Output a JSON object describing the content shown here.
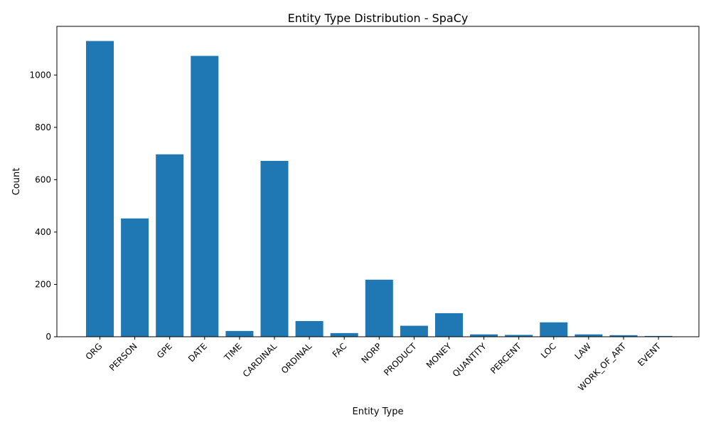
{
  "chart_data": {
    "type": "bar",
    "title": "Entity Type Distribution - SpaCy",
    "xlabel": "Entity Type",
    "ylabel": "Count",
    "categories": [
      "ORG",
      "PERSON",
      "GPE",
      "DATE",
      "TIME",
      "CARDINAL",
      "ORDINAL",
      "FAC",
      "NORP",
      "PRODUCT",
      "MONEY",
      "QUANTITY",
      "PERCENT",
      "LOC",
      "LAW",
      "WORK_OF_ART",
      "EVENT"
    ],
    "values": [
      1130,
      452,
      697,
      1073,
      22,
      672,
      60,
      14,
      218,
      42,
      90,
      9,
      7,
      55,
      9,
      6,
      3
    ],
    "ylim": [
      0,
      1186
    ],
    "yticks": [
      0,
      200,
      400,
      600,
      800,
      1000
    ],
    "bar_color": "#1f77b4",
    "grid": false,
    "legend": false
  }
}
